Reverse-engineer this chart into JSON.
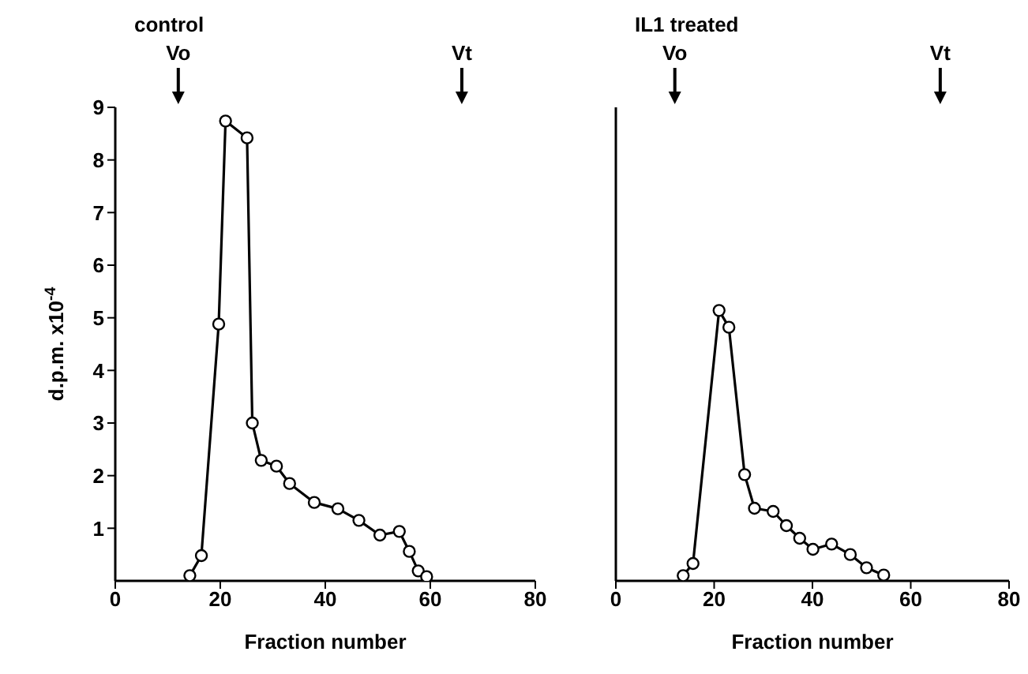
{
  "chart_data": [
    {
      "type": "line",
      "title": "control",
      "xlabel": "Fraction number",
      "ylabel": "d.p.m. x10$^{-4}$",
      "x": [
        14.2,
        16.4,
        19.7,
        21,
        25.1,
        26.1,
        27.8,
        30.7,
        33.2,
        37.9,
        42.4,
        46.4,
        50.4,
        54.1,
        56,
        57.7,
        59.3
      ],
      "series": [
        {
          "color": "#000000",
          "values": [
            0.1,
            0.48,
            4.88,
            8.74,
            8.42,
            3.0,
            2.29,
            2.18,
            1.85,
            1.49,
            1.37,
            1.15,
            0.87,
            0.94,
            0.56,
            0.19,
            0.08
          ]
        }
      ],
      "xlim": [
        0,
        80
      ],
      "xticks": [
        0,
        20,
        40,
        60,
        80
      ],
      "ylim": [
        0,
        9
      ],
      "yticks": [
        1,
        2,
        3,
        4,
        5,
        6,
        7,
        8,
        9
      ],
      "marker": "circle",
      "line_style": "solid",
      "ref_lines": [
        {
          "axis": "x",
          "value": 12,
          "label": "Vo"
        },
        {
          "axis": "x",
          "value": 66,
          "label": "Vt"
        }
      ]
    },
    {
      "type": "line",
      "title": "IL1 treated",
      "xlabel": "Fraction number",
      "x": [
        13.7,
        15.7,
        21,
        23,
        26.2,
        28.2,
        32,
        34.7,
        37.4,
        40.1,
        43.9,
        47.7,
        51,
        54.5
      ],
      "series": [
        {
          "color": "#000000",
          "values": [
            0.1,
            0.33,
            5.14,
            4.82,
            2.02,
            1.38,
            1.32,
            1.05,
            0.81,
            0.6,
            0.7,
            0.5,
            0.25,
            0.11
          ]
        }
      ],
      "xlim": [
        0,
        80
      ],
      "xticks": [
        0,
        20,
        40,
        60,
        80
      ],
      "ylim": [
        0,
        9
      ],
      "yticks": [
        1,
        2,
        3,
        4,
        5,
        6,
        7,
        8,
        9
      ],
      "tick_labels": "x",
      "marker": "circle",
      "line_style": "solid",
      "ref_lines": [
        {
          "axis": "x",
          "value": 12,
          "label": "Vo"
        },
        {
          "axis": "x",
          "value": 66,
          "label": "Vt"
        }
      ]
    }
  ]
}
